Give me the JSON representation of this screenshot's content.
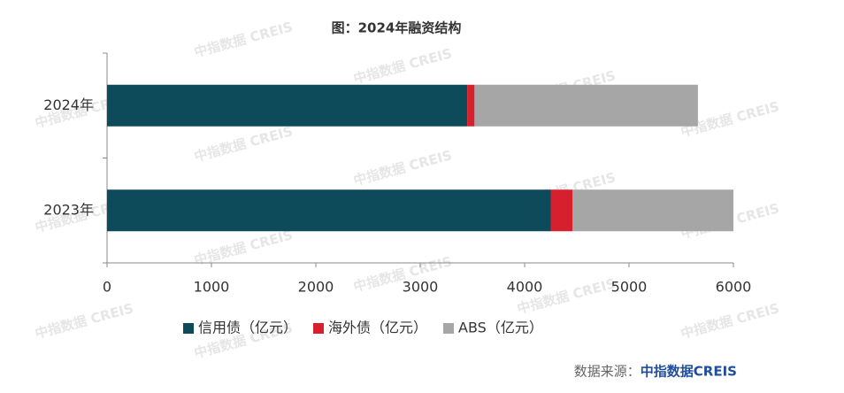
{
  "chart_data": {
    "type": "stacked_barh",
    "title": "图：2024年融资结构",
    "categories": [
      "2024年",
      "2023年"
    ],
    "series": [
      {
        "name": "信用债（亿元）",
        "color": "#0d4a5a",
        "values": [
          3450,
          4250
        ]
      },
      {
        "name": "海外债（亿元）",
        "color": "#d6202e",
        "values": [
          70,
          210
        ]
      },
      {
        "name": "ABS（亿元）",
        "color": "#a6a6a6",
        "values": [
          2140,
          1540
        ]
      }
    ],
    "xlim": [
      0,
      6000
    ],
    "xticks": [
      0,
      1000,
      2000,
      3000,
      4000,
      5000,
      6000
    ],
    "legend": "bottom",
    "source_label": "数据来源：",
    "source_name": "中指数据CREIS",
    "watermark": "中指数据 CREIS"
  }
}
